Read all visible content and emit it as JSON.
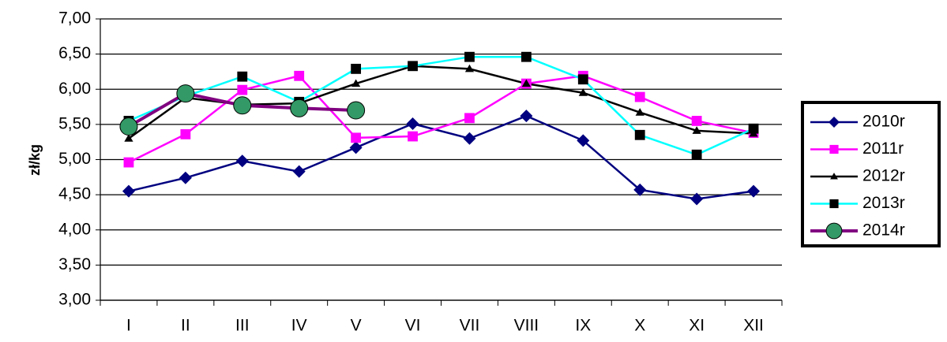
{
  "chart_data": {
    "type": "line",
    "y_label": "zł/kg",
    "categories": [
      "I",
      "II",
      "III",
      "IV",
      "V",
      "VI",
      "VII",
      "VIII",
      "IX",
      "X",
      "XI",
      "XII"
    ],
    "series": [
      {
        "name": "2010r",
        "color": "#000080",
        "marker_color": "#000080",
        "marker": "diamond",
        "values": [
          4.55,
          4.74,
          4.98,
          4.83,
          5.17,
          5.51,
          5.3,
          5.62,
          5.27,
          4.57,
          4.44,
          4.55
        ]
      },
      {
        "name": "2011r",
        "color": "#ff00ff",
        "marker_color": "#ff00ff",
        "marker": "square",
        "values": [
          4.96,
          5.36,
          5.99,
          6.19,
          5.31,
          5.33,
          5.59,
          6.08,
          6.19,
          5.89,
          5.55,
          5.38
        ]
      },
      {
        "name": "2012r",
        "color": "#000000",
        "marker_color": "#000000",
        "marker": "triangle",
        "values": [
          5.3,
          5.88,
          5.78,
          5.8,
          6.08,
          6.33,
          6.29,
          6.08,
          5.95,
          5.67,
          5.41,
          5.37
        ]
      },
      {
        "name": "2013r",
        "color": "#00ffff",
        "marker_color": "#000000",
        "marker": "square",
        "values": [
          5.55,
          5.9,
          6.18,
          5.82,
          6.29,
          6.33,
          6.46,
          6.46,
          6.14,
          5.35,
          5.07,
          5.44
        ]
      },
      {
        "name": "2014r",
        "color": "#800080",
        "marker_color": "#339966",
        "marker": "circle",
        "values": [
          5.47,
          5.94,
          5.77,
          5.73,
          5.7,
          null,
          null,
          null,
          null,
          null,
          null,
          null
        ]
      }
    ],
    "ylim": [
      3,
      7
    ],
    "yticks": [
      {
        "value": 3,
        "label": "3,00"
      },
      {
        "value": 3.5,
        "label": "3,50"
      },
      {
        "value": 4,
        "label": "4,00"
      },
      {
        "value": 4.5,
        "label": "4,50"
      },
      {
        "value": 5,
        "label": "5,00"
      },
      {
        "value": 5.5,
        "label": "5,50"
      },
      {
        "value": 6,
        "label": "6,00"
      },
      {
        "value": 6.5,
        "label": "6,50"
      },
      {
        "value": 7,
        "label": "7,00"
      }
    ],
    "grid": true,
    "legend": "right"
  }
}
